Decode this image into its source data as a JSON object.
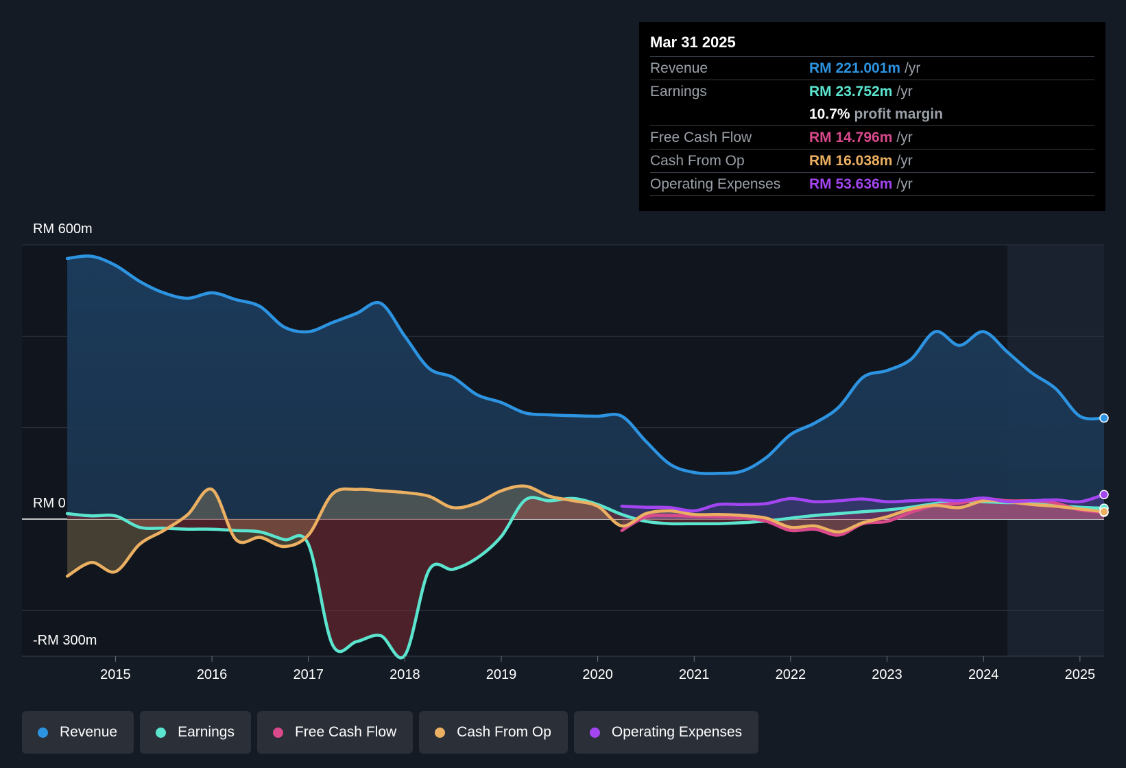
{
  "tooltip": {
    "date": "Mar 31 2025",
    "rows": {
      "revenue": {
        "label": "Revenue",
        "value": "RM 221.001m",
        "unit": "/yr",
        "color": "#2d94e2"
      },
      "earnings": {
        "label": "Earnings",
        "value": "RM 23.752m",
        "unit": "/yr",
        "color": "#5be5cf"
      },
      "margin": {
        "value": "10.7%",
        "unit": "profit margin"
      },
      "fcf": {
        "label": "Free Cash Flow",
        "value": "RM 14.796m",
        "unit": "/yr",
        "color": "#d9498c"
      },
      "cfo": {
        "label": "Cash From Op",
        "value": "RM 16.038m",
        "unit": "/yr",
        "color": "#ebb062"
      },
      "opex": {
        "label": "Operating Expenses",
        "value": "RM 53.636m",
        "unit": "/yr",
        "color": "#a346f1"
      }
    }
  },
  "axis": {
    "y_top_label": "RM 600m",
    "y_zero_label": "RM 0",
    "y_bottom_label": "-RM 300m"
  },
  "legend": {
    "revenue": "Revenue",
    "earnings": "Earnings",
    "fcf": "Free Cash Flow",
    "cfo": "Cash From Op",
    "opex": "Operating Expenses"
  },
  "chart_data": {
    "type": "area",
    "title": "",
    "x_unit": "year",
    "xlim": [
      2014.03,
      2025.25
    ],
    "ylim": [
      -300,
      600
    ],
    "y_grid": [
      600,
      400,
      200,
      0,
      -200
    ],
    "x_ticks": [
      2015,
      2016,
      2017,
      2018,
      2019,
      2020,
      2021,
      2022,
      2023,
      2024,
      2025
    ],
    "forecast_shade_start": 2024.25,
    "series": [
      {
        "key": "revenue",
        "name": "Revenue",
        "color": "#2d94e2",
        "unit": "RM m/yr",
        "points": [
          [
            2014.5,
            570
          ],
          [
            2014.75,
            575
          ],
          [
            2015,
            555
          ],
          [
            2015.25,
            520
          ],
          [
            2015.5,
            495
          ],
          [
            2015.75,
            483
          ],
          [
            2016,
            495
          ],
          [
            2016.25,
            480
          ],
          [
            2016.5,
            465
          ],
          [
            2016.75,
            420
          ],
          [
            2017,
            410
          ],
          [
            2017.25,
            430
          ],
          [
            2017.5,
            450
          ],
          [
            2017.75,
            472
          ],
          [
            2018,
            400
          ],
          [
            2018.25,
            330
          ],
          [
            2018.5,
            310
          ],
          [
            2018.75,
            272
          ],
          [
            2019,
            255
          ],
          [
            2019.25,
            232
          ],
          [
            2019.5,
            228
          ],
          [
            2019.75,
            226
          ],
          [
            2020,
            225
          ],
          [
            2020.25,
            225
          ],
          [
            2020.5,
            170
          ],
          [
            2020.75,
            120
          ],
          [
            2021,
            102
          ],
          [
            2021.25,
            100
          ],
          [
            2021.5,
            105
          ],
          [
            2021.75,
            135
          ],
          [
            2022,
            185
          ],
          [
            2022.25,
            210
          ],
          [
            2022.5,
            245
          ],
          [
            2022.75,
            310
          ],
          [
            2023,
            325
          ],
          [
            2023.25,
            350
          ],
          [
            2023.5,
            410
          ],
          [
            2023.75,
            380
          ],
          [
            2024,
            410
          ],
          [
            2024.25,
            365
          ],
          [
            2024.5,
            320
          ],
          [
            2024.75,
            285
          ],
          [
            2025,
            225
          ],
          [
            2025.25,
            221
          ]
        ]
      },
      {
        "key": "earnings",
        "name": "Earnings",
        "color": "#5be5cf",
        "unit": "RM m/yr",
        "points": [
          [
            2014.5,
            12
          ],
          [
            2014.75,
            7
          ],
          [
            2015,
            7
          ],
          [
            2015.25,
            -18
          ],
          [
            2015.5,
            -20
          ],
          [
            2015.75,
            -22
          ],
          [
            2016,
            -22
          ],
          [
            2016.25,
            -25
          ],
          [
            2016.5,
            -28
          ],
          [
            2016.75,
            -45
          ],
          [
            2017,
            -55
          ],
          [
            2017.25,
            -275
          ],
          [
            2017.5,
            -268
          ],
          [
            2017.75,
            -255
          ],
          [
            2018,
            -298
          ],
          [
            2018.25,
            -112
          ],
          [
            2018.5,
            -110
          ],
          [
            2018.75,
            -85
          ],
          [
            2019,
            -38
          ],
          [
            2019.25,
            42
          ],
          [
            2019.5,
            40
          ],
          [
            2019.75,
            45
          ],
          [
            2020,
            32
          ],
          [
            2020.25,
            10
          ],
          [
            2020.5,
            -5
          ],
          [
            2020.75,
            -10
          ],
          [
            2021,
            -10
          ],
          [
            2021.25,
            -10
          ],
          [
            2021.5,
            -8
          ],
          [
            2021.75,
            -4
          ],
          [
            2022,
            2
          ],
          [
            2022.25,
            8
          ],
          [
            2022.5,
            12
          ],
          [
            2022.75,
            16
          ],
          [
            2023,
            20
          ],
          [
            2023.25,
            26
          ],
          [
            2023.5,
            34
          ],
          [
            2023.75,
            38
          ],
          [
            2024,
            38
          ],
          [
            2024.25,
            36
          ],
          [
            2024.5,
            36
          ],
          [
            2024.75,
            30
          ],
          [
            2025,
            26
          ],
          [
            2025.25,
            23.752
          ]
        ]
      },
      {
        "key": "fcf",
        "name": "Free Cash Flow",
        "color": "#d9498c",
        "unit": "RM m/yr",
        "points": [
          [
            2020.25,
            -25
          ],
          [
            2020.5,
            5
          ],
          [
            2020.75,
            8
          ],
          [
            2021,
            6
          ],
          [
            2021.25,
            5
          ],
          [
            2021.5,
            3
          ],
          [
            2021.75,
            -5
          ],
          [
            2022,
            -25
          ],
          [
            2022.25,
            -22
          ],
          [
            2022.5,
            -35
          ],
          [
            2022.75,
            -10
          ],
          [
            2023,
            -5
          ],
          [
            2023.25,
            15
          ],
          [
            2023.5,
            30
          ],
          [
            2023.75,
            35
          ],
          [
            2024,
            45
          ],
          [
            2024.25,
            40
          ],
          [
            2024.5,
            40
          ],
          [
            2024.75,
            35
          ],
          [
            2025,
            20
          ],
          [
            2025.25,
            14.796
          ]
        ]
      },
      {
        "key": "cfo",
        "name": "Cash From Op",
        "color": "#ebb062",
        "unit": "RM m/yr",
        "points": [
          [
            2014.5,
            -125
          ],
          [
            2014.75,
            -95
          ],
          [
            2015,
            -115
          ],
          [
            2015.25,
            -55
          ],
          [
            2015.5,
            -25
          ],
          [
            2015.75,
            10
          ],
          [
            2016,
            65
          ],
          [
            2016.25,
            -45
          ],
          [
            2016.5,
            -40
          ],
          [
            2016.75,
            -60
          ],
          [
            2017,
            -35
          ],
          [
            2017.25,
            55
          ],
          [
            2017.5,
            65
          ],
          [
            2017.75,
            62
          ],
          [
            2018,
            58
          ],
          [
            2018.25,
            50
          ],
          [
            2018.5,
            25
          ],
          [
            2018.75,
            35
          ],
          [
            2019,
            62
          ],
          [
            2019.25,
            72
          ],
          [
            2019.5,
            50
          ],
          [
            2019.75,
            40
          ],
          [
            2020,
            28
          ],
          [
            2020.25,
            -15
          ],
          [
            2020.5,
            12
          ],
          [
            2020.75,
            18
          ],
          [
            2021,
            10
          ],
          [
            2021.25,
            10
          ],
          [
            2021.5,
            8
          ],
          [
            2021.75,
            2
          ],
          [
            2022,
            -18
          ],
          [
            2022.25,
            -15
          ],
          [
            2022.5,
            -28
          ],
          [
            2022.75,
            -8
          ],
          [
            2023,
            5
          ],
          [
            2023.25,
            22
          ],
          [
            2023.5,
            30
          ],
          [
            2023.75,
            25
          ],
          [
            2024,
            40
          ],
          [
            2024.25,
            38
          ],
          [
            2024.5,
            32
          ],
          [
            2024.75,
            28
          ],
          [
            2025,
            22
          ],
          [
            2025.25,
            16.038
          ]
        ]
      },
      {
        "key": "opex",
        "name": "Operating Expenses",
        "color": "#a346f1",
        "unit": "RM m/yr",
        "points": [
          [
            2020.25,
            28
          ],
          [
            2020.5,
            26
          ],
          [
            2020.75,
            25
          ],
          [
            2021,
            18
          ],
          [
            2021.25,
            32
          ],
          [
            2021.5,
            32
          ],
          [
            2021.75,
            34
          ],
          [
            2022,
            45
          ],
          [
            2022.25,
            38
          ],
          [
            2022.5,
            40
          ],
          [
            2022.75,
            44
          ],
          [
            2023,
            38
          ],
          [
            2023.25,
            40
          ],
          [
            2023.5,
            42
          ],
          [
            2023.75,
            40
          ],
          [
            2024,
            46
          ],
          [
            2024.25,
            38
          ],
          [
            2024.5,
            40
          ],
          [
            2024.75,
            42
          ],
          [
            2025,
            38
          ],
          [
            2025.25,
            53.636
          ]
        ]
      }
    ]
  }
}
